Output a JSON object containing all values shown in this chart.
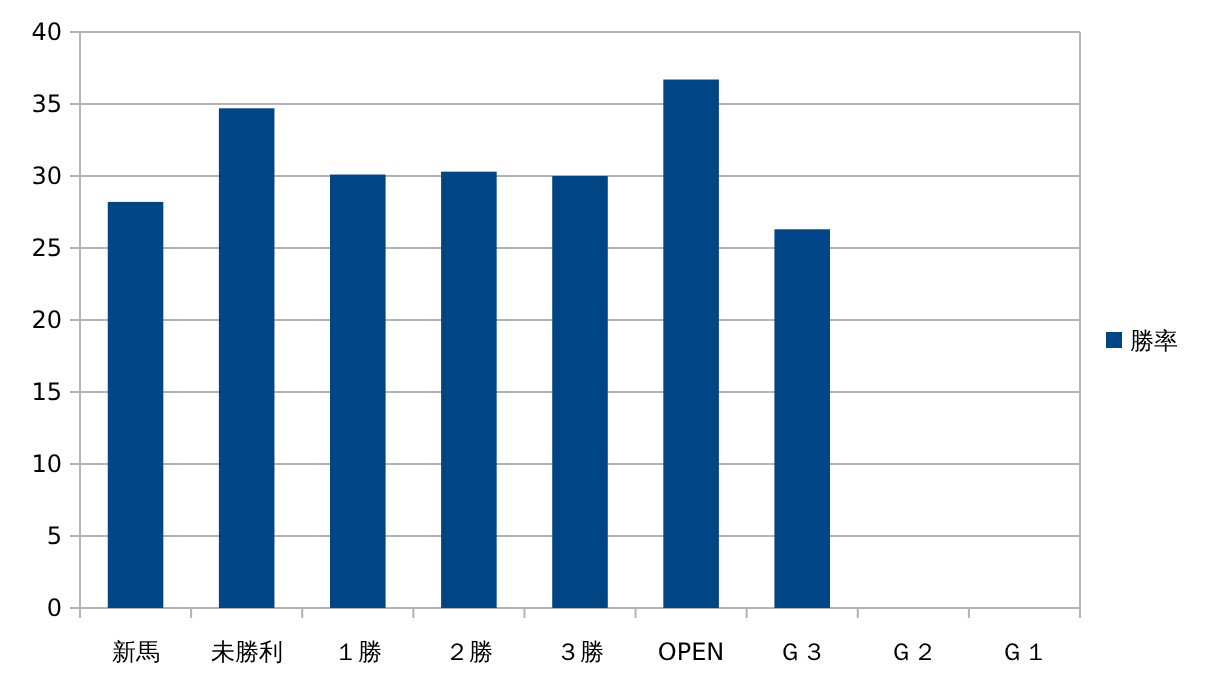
{
  "chart_data": {
    "type": "bar",
    "categories": [
      "新馬",
      "未勝利",
      "１勝",
      "２勝",
      "３勝",
      "OPEN",
      "Ｇ３",
      "Ｇ２",
      "Ｇ１"
    ],
    "series": [
      {
        "name": "勝率",
        "color": "#004586",
        "values": [
          28.2,
          34.7,
          30.1,
          30.3,
          30.0,
          36.7,
          26.3,
          null,
          null
        ]
      }
    ],
    "ylim": [
      0,
      40
    ],
    "yticks": [
      0,
      5,
      10,
      15,
      20,
      25,
      30,
      35,
      40
    ],
    "grid": "y",
    "legend": "right"
  }
}
